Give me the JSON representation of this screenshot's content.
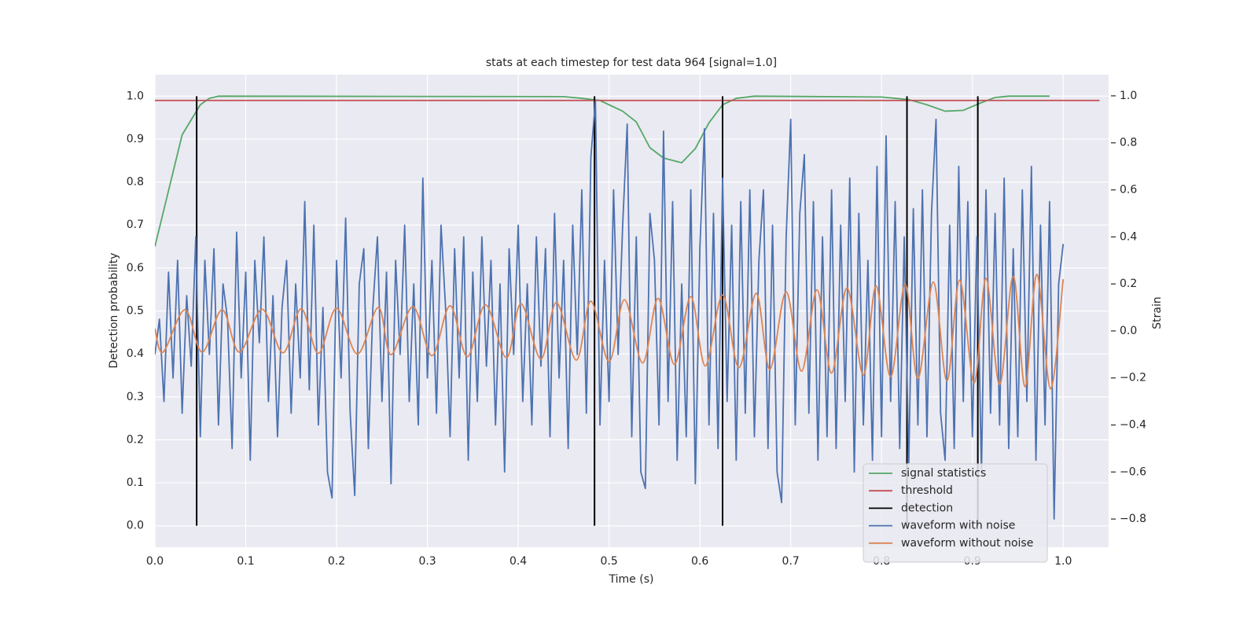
{
  "chart_data": {
    "type": "line",
    "title": "stats at each timestep for test data 964 [signal=1.0]",
    "x_label": "Time (s)",
    "y_label": "Detection probability",
    "y2_label": "Strain",
    "xlim": [
      0,
      1.05
    ],
    "ylim": [
      -0.05,
      1.05
    ],
    "y2lim": [
      -0.92,
      1.09
    ],
    "xticks": [
      {
        "value": 0,
        "label": "0.0"
      },
      {
        "value": 0.1,
        "label": "0.1"
      },
      {
        "value": 0.2,
        "label": "0.2"
      },
      {
        "value": 0.3,
        "label": "0.3"
      },
      {
        "value": 0.4,
        "label": "0.4"
      },
      {
        "value": 0.5,
        "label": "0.5"
      },
      {
        "value": 0.6,
        "label": "0.6"
      },
      {
        "value": 0.7,
        "label": "0.7"
      },
      {
        "value": 0.8,
        "label": "0.8"
      },
      {
        "value": 0.9,
        "label": "0.9"
      },
      {
        "value": 1,
        "label": "1.0"
      }
    ],
    "yticks": [
      {
        "value": 0,
        "label": "0.0"
      },
      {
        "value": 0.1,
        "label": "0.1"
      },
      {
        "value": 0.2,
        "label": "0.2"
      },
      {
        "value": 0.3,
        "label": "0.3"
      },
      {
        "value": 0.4,
        "label": "0.4"
      },
      {
        "value": 0.5,
        "label": "0.5"
      },
      {
        "value": 0.6,
        "label": "0.6"
      },
      {
        "value": 0.7,
        "label": "0.7"
      },
      {
        "value": 0.8,
        "label": "0.8"
      },
      {
        "value": 0.9,
        "label": "0.9"
      },
      {
        "value": 1,
        "label": "1.0"
      }
    ],
    "y2ticks": [
      {
        "value": -0.8,
        "label": "−0.8"
      },
      {
        "value": -0.6,
        "label": "−0.6"
      },
      {
        "value": -0.4,
        "label": "−0.4"
      },
      {
        "value": -0.2,
        "label": "−0.2"
      },
      {
        "value": 0,
        "label": "0.0"
      },
      {
        "value": 0.2,
        "label": "0.2"
      },
      {
        "value": 0.4,
        "label": "0.4"
      },
      {
        "value": 0.6,
        "label": "0.6"
      },
      {
        "value": 0.8,
        "label": "0.8"
      },
      {
        "value": 1,
        "label": "1.0"
      }
    ],
    "grid": true,
    "legend": "lower right",
    "series": [
      {
        "name": "signal statistics",
        "color": "#55a868",
        "x": [
          0,
          0.03,
          0.05,
          0.06,
          0.07,
          0.45,
          0.47,
          0.49,
          0.5,
          0.515,
          0.53,
          0.545,
          0.56,
          0.58,
          0.595,
          0.61,
          0.625,
          0.64,
          0.66,
          0.8,
          0.83,
          0.85,
          0.87,
          0.89,
          0.91,
          0.925,
          0.94,
          0.985
        ],
        "values": [
          0.65,
          0.91,
          0.98,
          0.995,
          1.0,
          0.999,
          0.995,
          0.99,
          0.98,
          0.965,
          0.94,
          0.88,
          0.856,
          0.845,
          0.878,
          0.938,
          0.98,
          0.995,
          1.0,
          0.998,
          0.992,
          0.98,
          0.965,
          0.967,
          0.985,
          0.997,
          1.0,
          1.0
        ]
      },
      {
        "name": "threshold",
        "color": "#c44e52",
        "x": [
          0,
          1.04
        ],
        "values": [
          0.99,
          0.99
        ]
      },
      {
        "name": "detection",
        "color": "#000000",
        "x": [
          0.046,
          0.484,
          0.625,
          0.828,
          0.906
        ],
        "ymin": 0,
        "ymax": 1
      },
      {
        "name": "waveform with noise",
        "color": "#4c72b0",
        "axis": "y2",
        "x": [
          0,
          0.005,
          0.01,
          0.015,
          0.02,
          0.025,
          0.03,
          0.035,
          0.04,
          0.045,
          0.05,
          0.055,
          0.06,
          0.065,
          0.07,
          0.075,
          0.08,
          0.085,
          0.09,
          0.095,
          0.1,
          0.105,
          0.11,
          0.115,
          0.12,
          0.125,
          0.13,
          0.135,
          0.14,
          0.145,
          0.15,
          0.155,
          0.16,
          0.165,
          0.17,
          0.175,
          0.18,
          0.185,
          0.19,
          0.195,
          0.2,
          0.205,
          0.21,
          0.215,
          0.22,
          0.225,
          0.23,
          0.235,
          0.24,
          0.245,
          0.25,
          0.255,
          0.26,
          0.265,
          0.27,
          0.275,
          0.28,
          0.285,
          0.29,
          0.295,
          0.3,
          0.305,
          0.31,
          0.315,
          0.32,
          0.325,
          0.33,
          0.335,
          0.34,
          0.345,
          0.35,
          0.355,
          0.36,
          0.365,
          0.37,
          0.375,
          0.38,
          0.385,
          0.39,
          0.395,
          0.4,
          0.405,
          0.41,
          0.415,
          0.42,
          0.425,
          0.43,
          0.435,
          0.44,
          0.445,
          0.45,
          0.455,
          0.46,
          0.465,
          0.47,
          0.475,
          0.48,
          0.485,
          0.49,
          0.495,
          0.5,
          0.505,
          0.51,
          0.515,
          0.52,
          0.525,
          0.53,
          0.535,
          0.54,
          0.545,
          0.55,
          0.555,
          0.56,
          0.565,
          0.57,
          0.575,
          0.58,
          0.585,
          0.59,
          0.595,
          0.6,
          0.605,
          0.61,
          0.615,
          0.62,
          0.625,
          0.63,
          0.635,
          0.64,
          0.645,
          0.65,
          0.655,
          0.66,
          0.665,
          0.67,
          0.675,
          0.68,
          0.685,
          0.69,
          0.695,
          0.7,
          0.705,
          0.71,
          0.715,
          0.72,
          0.725,
          0.73,
          0.735,
          0.74,
          0.745,
          0.75,
          0.755,
          0.76,
          0.765,
          0.77,
          0.775,
          0.78,
          0.785,
          0.79,
          0.795,
          0.8,
          0.805,
          0.81,
          0.815,
          0.82,
          0.825,
          0.83,
          0.835,
          0.84,
          0.845,
          0.85,
          0.855,
          0.86,
          0.865,
          0.87,
          0.875,
          0.88,
          0.885,
          0.89,
          0.895,
          0.9,
          0.905,
          0.91,
          0.915,
          0.92,
          0.925,
          0.93,
          0.935,
          0.94,
          0.945,
          0.95,
          0.955,
          0.96,
          0.965,
          0.97,
          0.975,
          0.98,
          0.985,
          0.99,
          0.995,
          1.0
        ],
        "values": [
          -0.1,
          0.05,
          -0.3,
          0.25,
          -0.2,
          0.3,
          -0.35,
          0.15,
          -0.15,
          0.4,
          -0.45,
          0.3,
          -0.1,
          0.35,
          -0.4,
          0.2,
          0.05,
          -0.5,
          0.42,
          -0.2,
          0.25,
          -0.55,
          0.3,
          -0.05,
          0.4,
          -0.3,
          0.15,
          -0.45,
          0.1,
          0.3,
          -0.35,
          0.2,
          -0.2,
          0.55,
          -0.25,
          0.45,
          -0.4,
          0.1,
          -0.6,
          -0.71,
          0.3,
          -0.2,
          0.48,
          -0.35,
          -0.7,
          0.2,
          0.35,
          -0.5,
          0.1,
          0.4,
          -0.3,
          0.25,
          -0.65,
          0.3,
          -0.1,
          0.45,
          -0.3,
          0.2,
          -0.4,
          0.65,
          -0.2,
          0.3,
          -0.35,
          0.45,
          0.1,
          -0.45,
          0.35,
          -0.2,
          0.4,
          -0.55,
          0.25,
          -0.3,
          0.4,
          -0.15,
          0.3,
          -0.4,
          0.2,
          -0.6,
          0.35,
          -0.1,
          0.45,
          -0.3,
          0.2,
          -0.4,
          0.4,
          -0.15,
          0.35,
          -0.45,
          0.5,
          -0.2,
          0.3,
          -0.5,
          0.45,
          -0.1,
          0.6,
          -0.35,
          0.74,
          0.98,
          -0.4,
          0.3,
          -0.3,
          0.6,
          -0.1,
          0.45,
          0.88,
          -0.45,
          0.4,
          -0.6,
          -0.67,
          0.5,
          0.3,
          -0.4,
          0.85,
          -0.3,
          0.55,
          -0.55,
          0.2,
          -0.45,
          0.6,
          -0.65,
          0.35,
          0.86,
          -0.4,
          0.5,
          -0.5,
          0.65,
          -0.3,
          0.45,
          -0.55,
          0.55,
          -0.35,
          0.6,
          -0.45,
          0.3,
          0.6,
          -0.5,
          0.45,
          -0.6,
          -0.73,
          0.4,
          0.9,
          -0.4,
          0.5,
          0.75,
          -0.35,
          0.55,
          -0.55,
          0.4,
          -0.45,
          0.6,
          -0.5,
          0.45,
          -0.3,
          0.65,
          -0.6,
          0.5,
          -0.4,
          0.3,
          -0.55,
          0.7,
          -0.45,
          0.83,
          -0.3,
          0.55,
          -0.5,
          0.4,
          -0.56,
          0.52,
          -0.4,
          0.6,
          -0.45,
          0.5,
          0.9,
          -0.35,
          -0.55,
          0.45,
          -0.5,
          0.7,
          -0.3,
          0.55,
          -0.45,
          0.4,
          -0.6,
          0.6,
          -0.35,
          0.5,
          -0.4,
          0.65,
          -0.5,
          0.35,
          -0.45,
          0.6,
          -0.3,
          0.7,
          -0.55,
          0.45,
          -0.4,
          0.55,
          -0.8,
          0.2,
          0.37
        ]
      },
      {
        "name": "waveform without noise",
        "color": "#dd8452",
        "axis": "y2",
        "smooth": true,
        "x": [
          0,
          0.009,
          0.033,
          0.052,
          0.074,
          0.093,
          0.118,
          0.141,
          0.161,
          0.18,
          0.2,
          0.223,
          0.246,
          0.26,
          0.284,
          0.305,
          0.325,
          0.344,
          0.364,
          0.387,
          0.403,
          0.425,
          0.442,
          0.464,
          0.48,
          0.5,
          0.517,
          0.537,
          0.554,
          0.572,
          0.59,
          0.606,
          0.625,
          0.643,
          0.662,
          0.677,
          0.695,
          0.712,
          0.729,
          0.745,
          0.762,
          0.78,
          0.794,
          0.81,
          0.826,
          0.84,
          0.857,
          0.872,
          0.886,
          0.902,
          0.915,
          0.93,
          0.945,
          0.958,
          0.971,
          0.986,
          1.0
        ],
        "values": [
          0.01,
          -0.09,
          0.09,
          -0.09,
          0.09,
          -0.09,
          0.092,
          -0.093,
          0.094,
          -0.095,
          0.096,
          -0.098,
          0.1,
          -0.101,
          0.103,
          -0.105,
          0.107,
          -0.109,
          0.111,
          -0.114,
          0.116,
          -0.119,
          0.121,
          -0.124,
          0.127,
          -0.13,
          0.133,
          -0.136,
          0.139,
          -0.142,
          0.146,
          -0.149,
          0.153,
          -0.156,
          0.16,
          -0.163,
          0.167,
          -0.171,
          0.175,
          -0.179,
          0.183,
          -0.187,
          0.191,
          -0.195,
          0.199,
          -0.203,
          0.208,
          -0.212,
          0.216,
          -0.22,
          0.224,
          -0.228,
          0.233,
          -0.237,
          0.241,
          -0.246,
          0.22
        ]
      }
    ]
  }
}
